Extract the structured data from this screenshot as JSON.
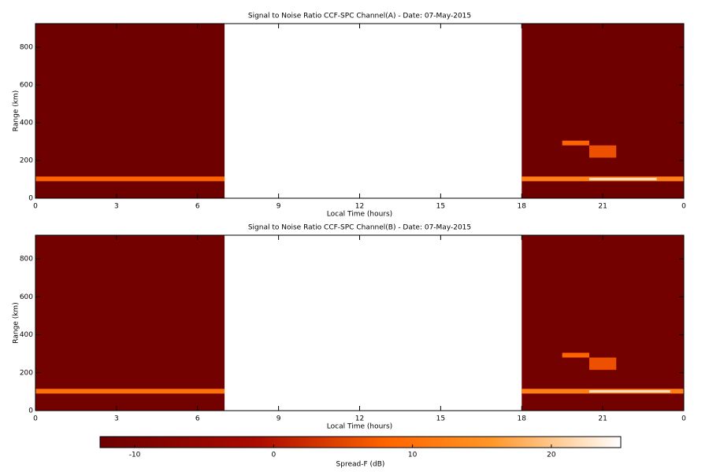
{
  "chart_data": [
    {
      "type": "heatmap",
      "title": "Signal to Noise Ratio CCF-SPC Channel(A) - Date: 07-May-2015",
      "x_label": "Local Time (hours)",
      "y_label": "Range (km)",
      "xlim": [
        0,
        24
      ],
      "xticks": [
        0,
        3,
        6,
        9,
        12,
        15,
        18,
        21,
        {
          "value": 24,
          "label": "0"
        }
      ],
      "ylim": [
        0,
        925
      ],
      "yticks": [
        0,
        200,
        400,
        600,
        800
      ],
      "cells": [
        {
          "x": [
            0,
            7
          ],
          "y": [
            0,
            925
          ],
          "value": -12
        },
        {
          "x": [
            18,
            24
          ],
          "y": [
            0,
            925
          ],
          "value": -12
        },
        {
          "x": [
            0,
            7
          ],
          "y": [
            90,
            115
          ],
          "value": 8
        },
        {
          "x": [
            18,
            24
          ],
          "y": [
            90,
            115
          ],
          "value": 12
        },
        {
          "x": [
            20.5,
            23
          ],
          "y": [
            95,
            108
          ],
          "value": 22
        },
        {
          "x": [
            19.5,
            20.5
          ],
          "y": [
            280,
            305
          ],
          "value": 8
        },
        {
          "x": [
            20.5,
            21.5
          ],
          "y": [
            215,
            280
          ],
          "value": 6
        }
      ]
    },
    {
      "type": "heatmap",
      "title": "Signal to Noise Ratio CCF-SPC Channel(B) - Date: 07-May-2015",
      "x_label": "Local Time (hours)",
      "y_label": "Range (km)",
      "xlim": [
        0,
        24
      ],
      "xticks": [
        0,
        3,
        6,
        9,
        12,
        15,
        18,
        21,
        {
          "value": 24,
          "label": "0"
        }
      ],
      "ylim": [
        0,
        925
      ],
      "yticks": [
        0,
        200,
        400,
        600,
        800
      ],
      "cells": [
        {
          "x": [
            0,
            7
          ],
          "y": [
            0,
            925
          ],
          "value": -11
        },
        {
          "x": [
            18,
            24
          ],
          "y": [
            0,
            925
          ],
          "value": -11
        },
        {
          "x": [
            0,
            7
          ],
          "y": [
            90,
            115
          ],
          "value": 10
        },
        {
          "x": [
            18,
            24
          ],
          "y": [
            90,
            115
          ],
          "value": 12
        },
        {
          "x": [
            20.5,
            23.5
          ],
          "y": [
            95,
            108
          ],
          "value": 22
        },
        {
          "x": [
            19.5,
            20.5
          ],
          "y": [
            280,
            305
          ],
          "value": 8
        },
        {
          "x": [
            20.5,
            21.5
          ],
          "y": [
            215,
            280
          ],
          "value": 6
        }
      ]
    }
  ],
  "colorbar": {
    "label": "Spread-F (dB)",
    "lim": [
      -12.5,
      25
    ],
    "ticks": [
      -10,
      0,
      10,
      20
    ]
  }
}
